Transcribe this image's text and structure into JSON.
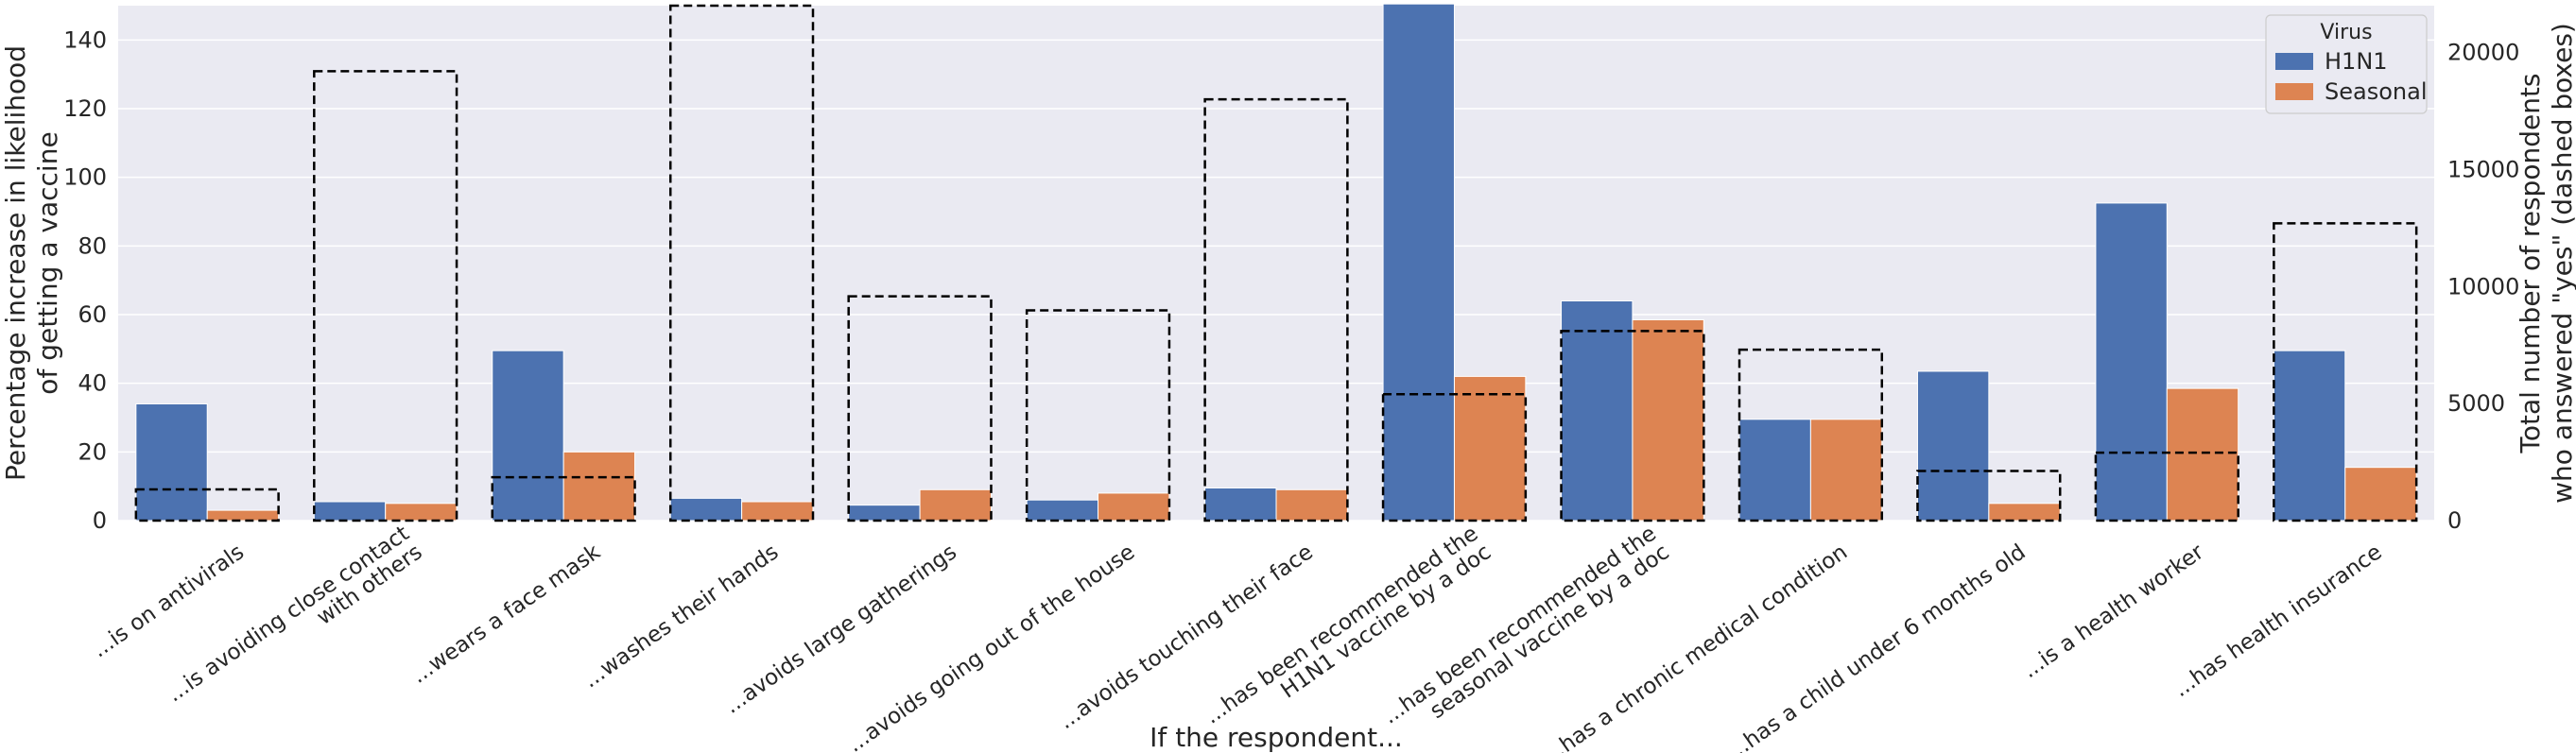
{
  "chart_data": {
    "type": "bar",
    "xlabel": "If the respondent...",
    "ylabel": [
      "Percentage increase in likelihood",
      "of getting a vaccine"
    ],
    "y2label": [
      "Total number of respondents",
      "who answered \"yes\" (dashed boxes)"
    ],
    "ylim": [
      0,
      150
    ],
    "y2lim": [
      0,
      22000
    ],
    "yticks": [
      0,
      20,
      40,
      60,
      80,
      100,
      120,
      140
    ],
    "y2ticks": [
      0,
      5000,
      10000,
      15000,
      20000
    ],
    "grid": true,
    "legend": {
      "title": "Virus",
      "placement": "top-right"
    },
    "colors": {
      "H1N1": "#4c72b0",
      "Seasonal": "#dd8452",
      "background": "#eaeaf2",
      "grid": "#ffffff"
    },
    "categories": [
      [
        "...is on antivirals"
      ],
      [
        "...is avoiding close contact",
        "with others"
      ],
      [
        "...wears a face mask"
      ],
      [
        "...washes their hands"
      ],
      [
        "...avoids large gatherings"
      ],
      [
        "...avoids going out of the house"
      ],
      [
        "...avoids touching their face"
      ],
      [
        "...has been recommended the",
        "H1N1 vaccine by a doc"
      ],
      [
        "...has been recommended the",
        "seasonal vaccine by a doc"
      ],
      [
        "...has a chronic medical condition"
      ],
      [
        "...has a child under 6 months old"
      ],
      [
        "...is a health worker"
      ],
      [
        "...has health insurance"
      ]
    ],
    "series": [
      {
        "name": "H1N1",
        "values": [
          34,
          5.5,
          49.5,
          6.5,
          4.5,
          6,
          9.5,
          150.5,
          64,
          29.5,
          43.5,
          92.5,
          49.5
        ]
      },
      {
        "name": "Seasonal",
        "values": [
          3,
          5,
          20,
          5.5,
          9,
          8,
          9,
          42,
          58.5,
          29.5,
          5,
          38.5,
          15.5
        ]
      }
    ],
    "total_yes": [
      1330,
      19200,
      1850,
      22000,
      9580,
      8980,
      18000,
      5400,
      8100,
      7300,
      2120,
      2900,
      12700
    ]
  }
}
